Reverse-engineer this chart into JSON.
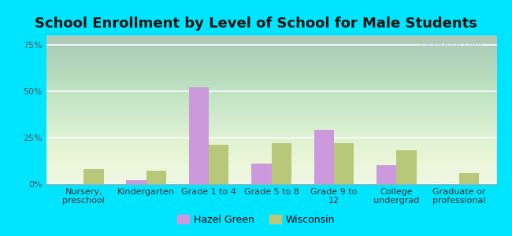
{
  "title": "School Enrollment by Level of School for Male Students",
  "categories": [
    "Nursery,\npreschool",
    "Kindergarten",
    "Grade 1 to 4",
    "Grade 5 to 8",
    "Grade 9 to\n12",
    "College\nundergrad",
    "Graduate or\nprofessional"
  ],
  "hazel_green": [
    0.0,
    2.0,
    52.0,
    11.0,
    29.0,
    10.0,
    0.0
  ],
  "wisconsin": [
    8.0,
    7.0,
    21.0,
    22.0,
    22.0,
    18.0,
    6.0
  ],
  "hazel_color": "#cc99dd",
  "wisconsin_color": "#b8c87a",
  "ylim": [
    0,
    80
  ],
  "yticks": [
    0,
    25,
    50,
    75
  ],
  "ytick_labels": [
    "0%",
    "25%",
    "50%",
    "75%"
  ],
  "title_fontsize": 13,
  "tick_fontsize": 8,
  "legend_labels": [
    "Hazel Green",
    "Wisconsin"
  ],
  "watermark": "City-Data.com",
  "figure_bg": "#00e5ff",
  "plot_bg": "#e8f5e5"
}
